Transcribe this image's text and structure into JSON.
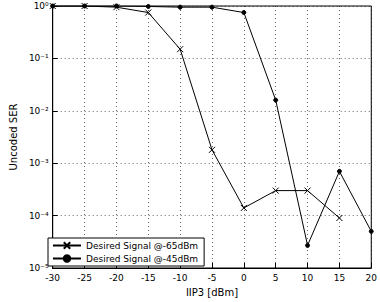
{
  "chart_data": {
    "type": "line",
    "x_label": "IIP3 [dBm]",
    "y_label": "Uncoded SER",
    "x": [
      -30,
      -25,
      -20,
      -15,
      -10,
      -5,
      0,
      5,
      10,
      15,
      20
    ],
    "series": [
      {
        "name": "Desired Signal @-65dBm",
        "color": "#000000",
        "marker": "x",
        "line_style": "solid",
        "values": [
          1,
          1,
          0.95,
          0.75,
          0.15,
          0.0018,
          0.00014,
          0.0003,
          0.0003,
          9e-05,
          null
        ]
      },
      {
        "name": "Desired Signal @-45dBm",
        "color": "#000000",
        "marker": "dot",
        "line_style": "solid",
        "values": [
          1,
          1,
          1,
          0.98,
          0.95,
          0.95,
          0.75,
          0.016,
          2.7e-05,
          0.0007,
          5e-05
        ]
      }
    ],
    "xlim": [
      -30,
      20
    ],
    "xticks": [
      -30,
      -25,
      -20,
      -15,
      -10,
      -5,
      0,
      5,
      10,
      15,
      20
    ],
    "ylim": [
      1e-05,
      1
    ],
    "yticks": [
      {
        "value": 1e-05,
        "label": "10⁻⁵"
      },
      {
        "value": 0.0001,
        "label": "10⁻⁴"
      },
      {
        "value": 0.001,
        "label": "10⁻³"
      },
      {
        "value": 0.01,
        "label": "10⁻²"
      },
      {
        "value": 0.1,
        "label": "10⁻¹"
      },
      {
        "value": 1,
        "label": "10⁰"
      }
    ],
    "log": "y",
    "grid": true,
    "legend": "lower left"
  }
}
